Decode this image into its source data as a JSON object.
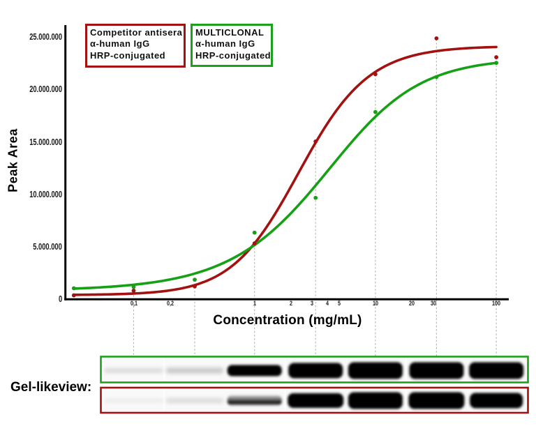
{
  "chart_data": {
    "type": "line",
    "title": "",
    "xlabel": "Concentration (mg/mL)",
    "ylabel": "Peak Area",
    "x_scale": "log",
    "xlim": [
      0.027,
      133
    ],
    "ylim": [
      0,
      26100000
    ],
    "x_ticks": [
      {
        "value": 0.1,
        "label": "0,1"
      },
      {
        "value": 0.2,
        "label": "0,2"
      },
      {
        "value": 1,
        "label": "1"
      },
      {
        "value": 2,
        "label": "2"
      },
      {
        "value": 3,
        "label": "3"
      },
      {
        "value": 4,
        "label": "4"
      },
      {
        "value": 5,
        "label": "5"
      },
      {
        "value": 10,
        "label": "10"
      },
      {
        "value": 20,
        "label": "20"
      },
      {
        "value": 30,
        "label": "30"
      },
      {
        "value": 100,
        "label": "100"
      }
    ],
    "y_ticks": [
      {
        "value": 0,
        "label": "0"
      },
      {
        "value": 5000000,
        "label": "5.000.000"
      },
      {
        "value": 10000000,
        "label": "10.000.000"
      },
      {
        "value": 15000000,
        "label": "15.000.000"
      },
      {
        "value": 20000000,
        "label": "20.000.000"
      },
      {
        "value": 25000000,
        "label": "25.000.000"
      }
    ],
    "samples_x": [
      0.032,
      0.1,
      0.32,
      1,
      3.2,
      10,
      32,
      100
    ],
    "guide_lines_x": [
      0.1,
      0.32,
      1,
      3.2,
      10,
      32,
      100
    ],
    "series": [
      {
        "name": "Competitor antisera α-human IgG HRP-conjugated",
        "color": "#a31111",
        "values": [
          330000,
          770000,
          1180000,
          5290000,
          15010000,
          21430000,
          24850000,
          23050000
        ],
        "fit_5pl": {
          "bottom": 355000,
          "top": 24118000,
          "ec50": 2.1,
          "hill": 1.47,
          "asym": 1.14
        }
      },
      {
        "name": "MULTICLONAL α-human IgG HRP-conjugated",
        "color": "#16a016",
        "values": [
          1000000,
          1120000,
          1820000,
          6310000,
          9630000,
          17820000,
          21160000,
          22510000
        ],
        "fit_5pl": {
          "bottom": 769000,
          "top": 22991000,
          "ec50": 5.24,
          "hill": 1.2,
          "asym": 0.77
        }
      }
    ],
    "legend_position": "top-left",
    "grid": "off"
  },
  "legend": {
    "competitor": {
      "border_color": "#a31111",
      "lines": [
        "Competitor antisera",
        "α-human IgG",
        "HRP-conjugated"
      ]
    },
    "multiclonal": {
      "border_color": "#1ca11c",
      "lines": [
        "MULTICLONAL",
        "α-human IgG",
        "HRP-conjugated"
      ]
    }
  },
  "gel": {
    "label": "Gel-likeview:",
    "lane_concentrations": [
      0.1,
      0.32,
      1,
      3.2,
      10,
      32,
      100
    ],
    "rows": [
      {
        "name": "multiclonal",
        "border_color": "#1ca11c",
        "bands": [
          {
            "intensity": 0.12,
            "height": 7,
            "width": 84,
            "soft": true
          },
          {
            "intensity": 0.18,
            "height": 9,
            "width": 82,
            "soft": true
          },
          {
            "intensity": 1.0,
            "height": 16,
            "width": 78
          },
          {
            "intensity": 1.0,
            "height": 22,
            "width": 78
          },
          {
            "intensity": 1.0,
            "height": 24,
            "width": 78
          },
          {
            "intensity": 1.0,
            "height": 24,
            "width": 78
          },
          {
            "intensity": 1.0,
            "height": 24,
            "width": 78
          }
        ]
      },
      {
        "name": "competitor",
        "border_color": "#a31111",
        "bands": [
          {
            "intensity": 0.05,
            "height": 6,
            "width": 84,
            "soft": true
          },
          {
            "intensity": 0.11,
            "height": 8,
            "width": 82,
            "soft": true
          },
          {
            "intensity": 0.85,
            "height": 15,
            "width": 78,
            "smear": true
          },
          {
            "intensity": 1.0,
            "height": 21,
            "width": 80
          },
          {
            "intensity": 1.0,
            "height": 24,
            "width": 78
          },
          {
            "intensity": 1.0,
            "height": 24,
            "width": 80
          },
          {
            "intensity": 1.0,
            "height": 22,
            "width": 76
          }
        ]
      }
    ]
  }
}
